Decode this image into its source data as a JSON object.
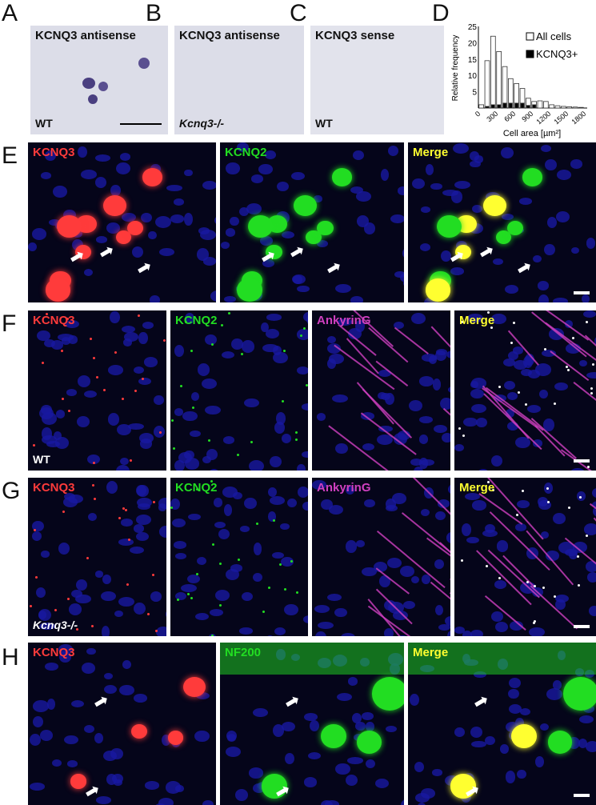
{
  "panels": {
    "A": {
      "letter": "A",
      "label": "KCNQ3 antisense",
      "genotype": "WT"
    },
    "B": {
      "letter": "B",
      "label": "KCNQ3 antisense",
      "genotype": "Kcnq3-/-"
    },
    "C": {
      "letter": "C",
      "label": "KCNQ3 sense",
      "genotype": "WT"
    },
    "D": {
      "letter": "D"
    },
    "E": {
      "letter": "E",
      "labels": [
        "KCNQ3",
        "KCNQ2",
        "Merge"
      ]
    },
    "F": {
      "letter": "F",
      "labels": [
        "KCNQ3",
        "KCNQ2",
        "AnkyrinG",
        "Merge"
      ],
      "genotype": "WT"
    },
    "G": {
      "letter": "G",
      "labels": [
        "KCNQ3",
        "KCNQ2",
        "AnkyrinG",
        "Merge"
      ],
      "genotype": "Kcnq3-/-"
    },
    "H": {
      "letter": "H",
      "labels": [
        "KCNQ3",
        "NF200",
        "Merge"
      ]
    }
  },
  "colors": {
    "red": "#ff3b3b",
    "green": "#22dd22",
    "magenta": "#d040c0",
    "yellow": "#ffff30",
    "blue": "#1818a0"
  },
  "chart_data": {
    "type": "bar",
    "xlabel": "Cell area [µm²]",
    "ylabel": "Relative frequency",
    "xticks": [
      "0",
      "300",
      "600",
      "900",
      "1200",
      "1500",
      "1800"
    ],
    "yticks": [
      "5",
      "10",
      "15",
      "20",
      "25"
    ],
    "ylim": [
      0,
      25
    ],
    "xlim": [
      0,
      1800
    ],
    "bin_width": 100,
    "x": [
      0,
      100,
      200,
      300,
      400,
      500,
      600,
      700,
      800,
      900,
      1000,
      1100,
      1200,
      1300,
      1400,
      1500,
      1600,
      1700
    ],
    "series": [
      {
        "name": "All cells",
        "color": "#ffffff",
        "values": [
          1,
          14.5,
          22,
          17.3,
          12.7,
          9,
          7.5,
          6,
          3,
          2,
          2.2,
          2,
          1,
          0.7,
          0.5,
          0.4,
          0.3,
          0.2
        ]
      },
      {
        "name": "KCNQ3+",
        "color": "#000000",
        "values": [
          0,
          0.5,
          1,
          1,
          1.5,
          1.5,
          1.5,
          1.5,
          0.8,
          1,
          0,
          0,
          0,
          0,
          0,
          0,
          0,
          0
        ]
      }
    ],
    "legend": "top-right"
  }
}
